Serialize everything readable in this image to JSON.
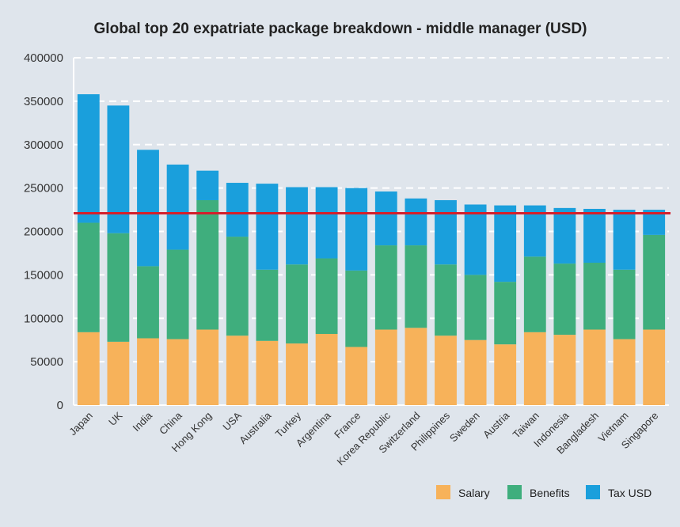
{
  "chart_data": {
    "type": "bar",
    "stacked": true,
    "title": "Global top 20 expatriate package breakdown - middle manager (USD)",
    "xlabel": "",
    "ylabel": "",
    "ylim": [
      0,
      400000
    ],
    "yticks": [
      "0",
      "50000",
      "100000",
      "150000",
      "200000",
      "250000",
      "300000",
      "350000",
      "400000"
    ],
    "grid": true,
    "legend": "bottom-right",
    "categories": [
      "Japan",
      "UK",
      "India",
      "China",
      "Hong Kong",
      "USA",
      "Australia",
      "Turkey",
      "Argentina",
      "France",
      "Korea Republic",
      "Switzerland",
      "Philippines",
      "Sweden",
      "Austria",
      "Taiwan",
      "Indonesia",
      "Bangladesh",
      "Vietnam",
      "Singapore"
    ],
    "series": [
      {
        "name": "Salary",
        "color": "#f7b25a",
        "values": [
          84000,
          73000,
          77000,
          76000,
          87000,
          80000,
          74000,
          71000,
          82000,
          67000,
          87000,
          89000,
          80000,
          75000,
          70000,
          84000,
          81000,
          87000,
          76000,
          87000
        ]
      },
      {
        "name": "Benefits",
        "color": "#3fae7d",
        "values": [
          126000,
          125000,
          83000,
          103000,
          149000,
          114000,
          82000,
          91000,
          87000,
          88000,
          97000,
          95000,
          82000,
          75000,
          72000,
          87000,
          82000,
          77000,
          80000,
          109000
        ]
      },
      {
        "name": "Tax USD",
        "color": "#1a9fdc",
        "values": [
          148000,
          147000,
          134000,
          98000,
          34000,
          62000,
          99000,
          89000,
          82000,
          95000,
          62000,
          54000,
          74000,
          81000,
          88000,
          59000,
          64000,
          62000,
          69000,
          29000
        ]
      }
    ],
    "reference_line": {
      "value": 221000,
      "color": "#d41f2b"
    }
  }
}
